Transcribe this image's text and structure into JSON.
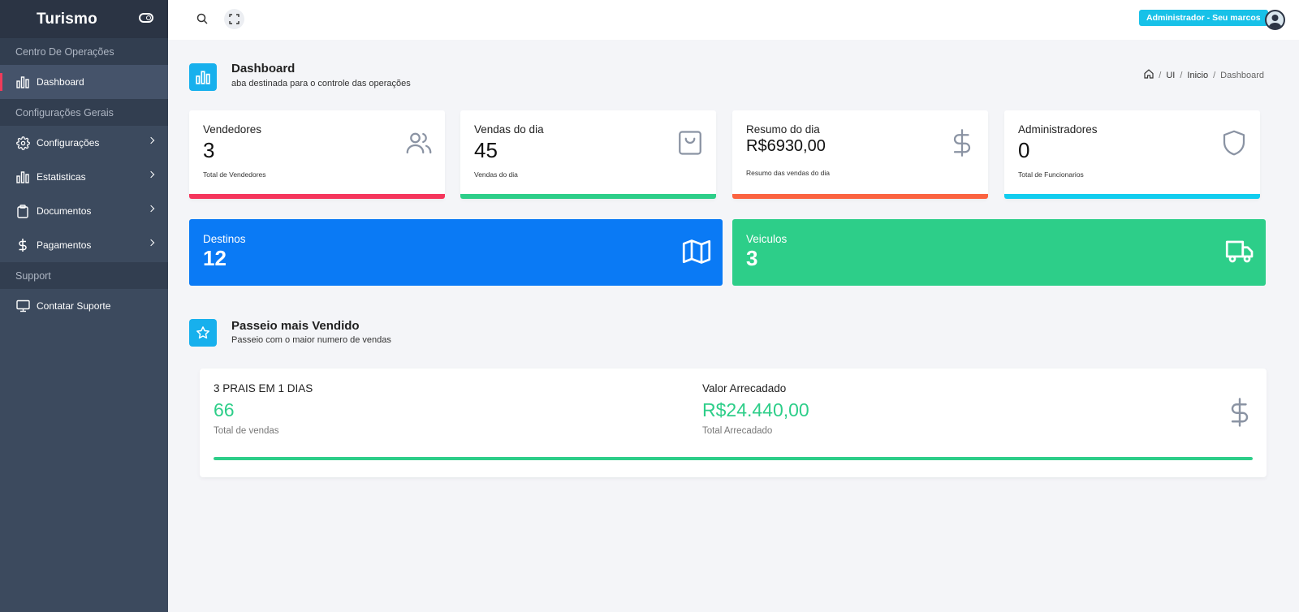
{
  "sidebar": {
    "brand": "Turismo",
    "sections": [
      {
        "header": "Centro De Operações"
      },
      {
        "header": "Configurações Gerais"
      },
      {
        "header": "Support"
      }
    ],
    "items": [
      {
        "label": "Dashboard",
        "icon": "bar-chart-icon"
      },
      {
        "label": "Configurações",
        "icon": "gear-icon"
      },
      {
        "label": "Estatisticas",
        "icon": "bar-chart-icon"
      },
      {
        "label": "Documentos",
        "icon": "clipboard-icon"
      },
      {
        "label": "Pagamentos",
        "icon": "dollar-icon"
      },
      {
        "label": "Contatar Suporte",
        "icon": "monitor-icon"
      }
    ]
  },
  "topbar": {
    "admin_badge": "Administrador - Seu marcos"
  },
  "page": {
    "title": "Dashboard",
    "subtitle": "aba destinada para o controle das operações",
    "breadcrumb": [
      "UI",
      "Inicio",
      "Dashboard"
    ]
  },
  "stats": [
    {
      "label": "Vendedores",
      "value": "3",
      "note": "Total de Vendedores",
      "color": "#f5365c",
      "icon": "users-icon"
    },
    {
      "label": "Vendas do dia",
      "value": "45",
      "note": "Vendas do dia",
      "color": "#2dce89",
      "icon": "shopping-bag-icon"
    },
    {
      "label": "Resumo do dia",
      "value": "R$6930,00",
      "note": "Resumo das vendas do dia",
      "color": "#fb6340",
      "icon": "dollar-icon"
    },
    {
      "label": "Administradores",
      "value": "0",
      "note": "Total de Funcionarios",
      "color": "#11cdef",
      "icon": "shield-icon"
    }
  ],
  "wide": [
    {
      "label": "Destinos",
      "value": "12",
      "color": "#0a7af5",
      "icon": "map-icon"
    },
    {
      "label": "Veiculos",
      "value": "3",
      "color": "#2dce89",
      "icon": "truck-icon"
    }
  ],
  "top_tour": {
    "section_title": "Passeio mais Vendido",
    "section_subtitle": "Passeio com o maior numero de vendas",
    "name": "3 PRAIS EM 1 DIAS",
    "sales": "66",
    "sales_note": "Total de vendas",
    "revenue_label": "Valor Arrecadado",
    "revenue": "R$24.440,00",
    "revenue_note": "Total Arrecadado",
    "progress": 1.0,
    "accent": "#2dce89"
  }
}
